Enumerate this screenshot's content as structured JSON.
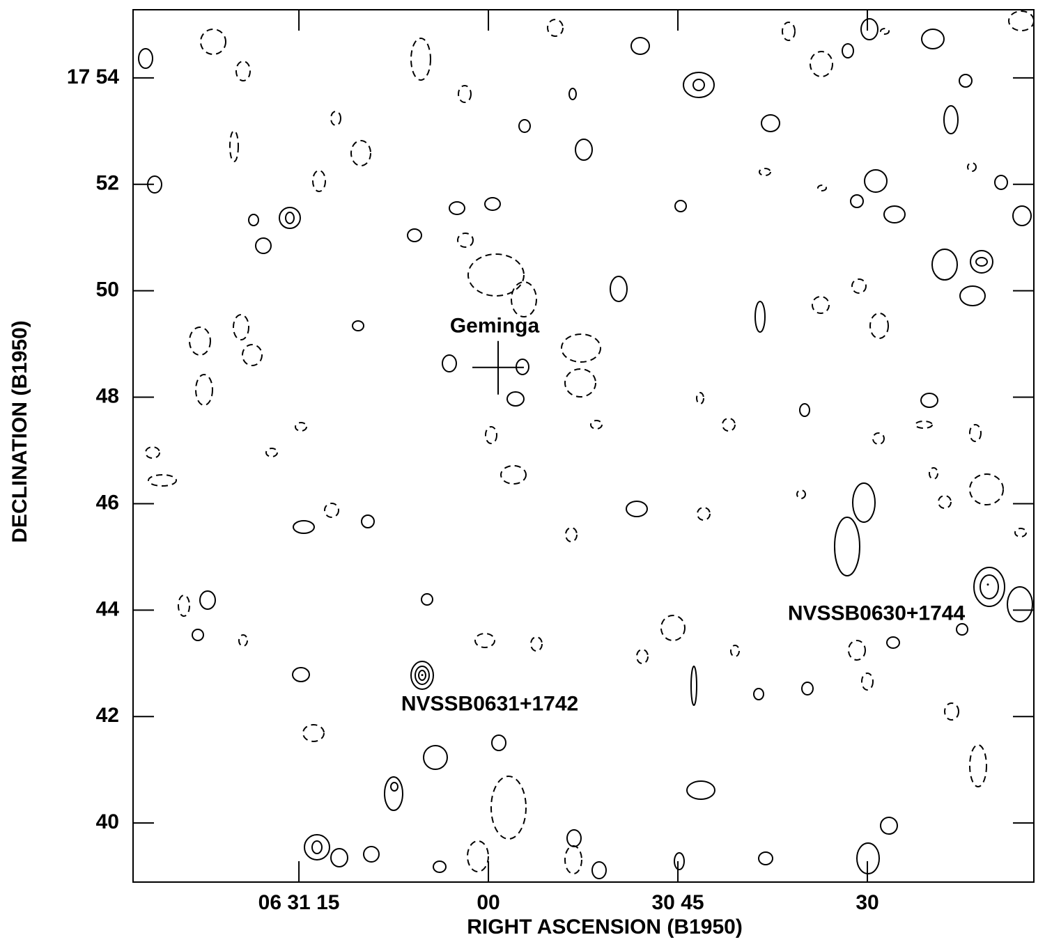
{
  "chart_data": {
    "type": "contour",
    "x_label": "RIGHT ASCENSION (B1950)",
    "y_label": "DECLINATION (B1950)",
    "xlim": [
      88.13,
      16.82
    ],
    "ylim": [
      38.89,
      55.28
    ],
    "xticks": [
      {
        "value": 75,
        "label": "06 31 15"
      },
      {
        "value": 60,
        "label": "00"
      },
      {
        "value": 45,
        "label": "30 45"
      },
      30
    ],
    "yticks": [
      {
        "value": 54,
        "label": "17 54"
      },
      52,
      50,
      48,
      46,
      44,
      42,
      40
    ],
    "annotations": [
      {
        "text": "Geminga",
        "x": 59.23,
        "y": 48.56
      },
      {
        "text": "NVSSB0631+1742",
        "x": 65.24,
        "y": 42.78
      },
      {
        "text": "NVSSB0630+1744",
        "x": 20.46,
        "y": 44.48
      }
    ]
  }
}
